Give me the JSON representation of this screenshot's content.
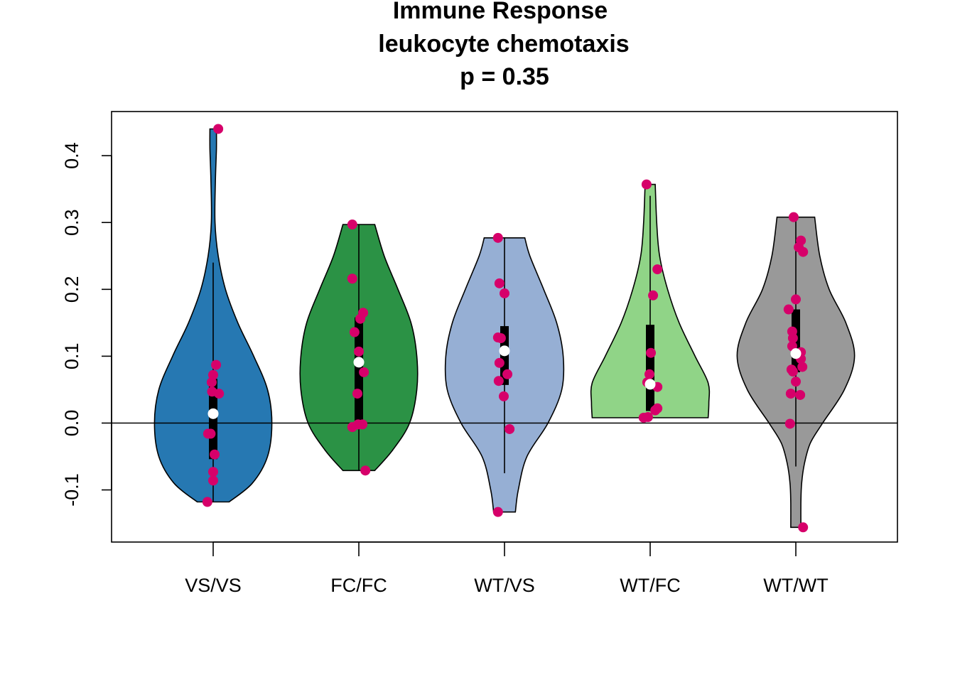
{
  "chart_data": {
    "type": "violin",
    "title": [
      "Immune Response",
      "leukocyte chemotaxis",
      "p = 0.35"
    ],
    "xlabel": "",
    "ylabel": "",
    "categories": [
      "VS/VS",
      "FC/FC",
      "WT/VS",
      "WT/FC",
      "WT/WT"
    ],
    "ylim": [
      -0.178,
      0.466
    ],
    "yticks": [
      -0.1,
      0.0,
      0.1,
      0.2,
      0.3,
      0.4
    ],
    "ytick_labels": [
      "-0.1",
      "0.0",
      "0.1",
      "0.2",
      "0.3",
      "0.4"
    ],
    "reference_line_y": 0.0,
    "grid": false,
    "point_color": "#d6006a",
    "median_color": "#ffffff",
    "groups": [
      {
        "name": "VS/VS",
        "fill": "#2678b2",
        "min": -0.118,
        "max": 0.44,
        "whisker_low": -0.118,
        "whisker_high": 0.24,
        "q1": -0.054,
        "median": 0.014,
        "q3": 0.066,
        "violin": [
          {
            "y": -0.118,
            "w": 0.22
          },
          {
            "y": -0.09,
            "w": 0.54
          },
          {
            "y": -0.05,
            "w": 0.75
          },
          {
            "y": 0.0,
            "w": 0.81
          },
          {
            "y": 0.05,
            "w": 0.75
          },
          {
            "y": 0.1,
            "w": 0.56
          },
          {
            "y": 0.15,
            "w": 0.34
          },
          {
            "y": 0.2,
            "w": 0.17
          },
          {
            "y": 0.25,
            "w": 0.07
          },
          {
            "y": 0.3,
            "w": 0.025
          },
          {
            "y": 0.36,
            "w": 0.03
          },
          {
            "y": 0.41,
            "w": 0.045
          },
          {
            "y": 0.44,
            "w": 0.045
          }
        ],
        "points": [
          {
            "y": 0.44,
            "dx": 0.07
          },
          {
            "y": 0.087,
            "dx": 0.04
          },
          {
            "y": 0.072,
            "dx": 0.0
          },
          {
            "y": 0.061,
            "dx": -0.02
          },
          {
            "y": 0.047,
            "dx": -0.015
          },
          {
            "y": 0.044,
            "dx": 0.08
          },
          {
            "y": -0.016,
            "dx": -0.07
          },
          {
            "y": -0.016,
            "dx": -0.035
          },
          {
            "y": -0.047,
            "dx": 0.02
          },
          {
            "y": -0.073,
            "dx": 0.0
          },
          {
            "y": -0.086,
            "dx": 0.0
          },
          {
            "y": -0.118,
            "dx": -0.08
          }
        ]
      },
      {
        "name": "FC/FC",
        "fill": "#2b9245",
        "min": -0.071,
        "max": 0.297,
        "whisker_low": -0.071,
        "whisker_high": 0.297,
        "q1": 0.002,
        "median": 0.091,
        "q3": 0.158,
        "violin": [
          {
            "y": -0.071,
            "w": 0.22
          },
          {
            "y": -0.04,
            "w": 0.47
          },
          {
            "y": 0.0,
            "w": 0.7
          },
          {
            "y": 0.05,
            "w": 0.8
          },
          {
            "y": 0.1,
            "w": 0.8
          },
          {
            "y": 0.15,
            "w": 0.72
          },
          {
            "y": 0.2,
            "w": 0.54
          },
          {
            "y": 0.25,
            "w": 0.35
          },
          {
            "y": 0.297,
            "w": 0.22
          }
        ],
        "points": [
          {
            "y": 0.297,
            "dx": -0.09
          },
          {
            "y": 0.216,
            "dx": -0.09
          },
          {
            "y": 0.165,
            "dx": 0.06
          },
          {
            "y": 0.156,
            "dx": 0.02
          },
          {
            "y": 0.136,
            "dx": -0.06
          },
          {
            "y": 0.107,
            "dx": 0.0
          },
          {
            "y": 0.076,
            "dx": 0.07
          },
          {
            "y": 0.044,
            "dx": -0.02
          },
          {
            "y": -0.002,
            "dx": 0.05
          },
          {
            "y": -0.002,
            "dx": -0.01
          },
          {
            "y": -0.006,
            "dx": -0.09
          },
          {
            "y": -0.071,
            "dx": 0.09
          }
        ]
      },
      {
        "name": "WT/VS",
        "fill": "#96afd4",
        "min": -0.133,
        "max": 0.277,
        "whisker_low": -0.075,
        "whisker_high": 0.277,
        "q1": 0.057,
        "median": 0.108,
        "q3": 0.145,
        "violin": [
          {
            "y": -0.133,
            "w": 0.15
          },
          {
            "y": -0.1,
            "w": 0.19
          },
          {
            "y": -0.05,
            "w": 0.31
          },
          {
            "y": 0.0,
            "w": 0.6
          },
          {
            "y": 0.05,
            "w": 0.79
          },
          {
            "y": 0.1,
            "w": 0.81
          },
          {
            "y": 0.15,
            "w": 0.72
          },
          {
            "y": 0.2,
            "w": 0.54
          },
          {
            "y": 0.25,
            "w": 0.35
          },
          {
            "y": 0.277,
            "w": 0.28
          }
        ],
        "points": [
          {
            "y": 0.277,
            "dx": -0.09
          },
          {
            "y": 0.209,
            "dx": -0.07
          },
          {
            "y": 0.194,
            "dx": 0.0
          },
          {
            "y": 0.128,
            "dx": -0.09
          },
          {
            "y": 0.127,
            "dx": -0.05
          },
          {
            "y": 0.09,
            "dx": -0.07
          },
          {
            "y": 0.073,
            "dx": 0.04
          },
          {
            "y": 0.063,
            "dx": -0.08
          },
          {
            "y": 0.04,
            "dx": -0.01
          },
          {
            "y": -0.009,
            "dx": 0.07
          },
          {
            "y": -0.133,
            "dx": -0.09
          }
        ]
      },
      {
        "name": "WT/FC",
        "fill": "#90d487",
        "min": 0.008,
        "max": 0.357,
        "whisker_low": 0.018,
        "whisker_high": 0.34,
        "q1": 0.018,
        "median": 0.058,
        "q3": 0.147,
        "violin": [
          {
            "y": 0.008,
            "w": 0.8
          },
          {
            "y": 0.03,
            "w": 0.81
          },
          {
            "y": 0.06,
            "w": 0.8
          },
          {
            "y": 0.1,
            "w": 0.62
          },
          {
            "y": 0.15,
            "w": 0.4
          },
          {
            "y": 0.2,
            "w": 0.24
          },
          {
            "y": 0.25,
            "w": 0.13
          },
          {
            "y": 0.3,
            "w": 0.09
          },
          {
            "y": 0.357,
            "w": 0.07
          }
        ],
        "points": [
          {
            "y": 0.357,
            "dx": -0.05
          },
          {
            "y": 0.23,
            "dx": 0.1
          },
          {
            "y": 0.191,
            "dx": 0.04
          },
          {
            "y": 0.105,
            "dx": 0.01
          },
          {
            "y": 0.073,
            "dx": -0.01
          },
          {
            "y": 0.061,
            "dx": -0.04
          },
          {
            "y": 0.054,
            "dx": 0.1
          },
          {
            "y": 0.022,
            "dx": 0.1
          },
          {
            "y": 0.019,
            "dx": 0.07
          },
          {
            "y": 0.009,
            "dx": -0.03
          },
          {
            "y": 0.008,
            "dx": -0.09
          }
        ]
      },
      {
        "name": "WT/WT",
        "fill": "#999999",
        "min": -0.156,
        "max": 0.308,
        "whisker_low": -0.065,
        "whisker_high": 0.308,
        "q1": 0.076,
        "median": 0.104,
        "q3": 0.17,
        "violin": [
          {
            "y": -0.156,
            "w": 0.07
          },
          {
            "y": -0.12,
            "w": 0.07
          },
          {
            "y": -0.09,
            "w": 0.08
          },
          {
            "y": -0.06,
            "w": 0.12
          },
          {
            "y": -0.03,
            "w": 0.2
          },
          {
            "y": 0.0,
            "w": 0.37
          },
          {
            "y": 0.05,
            "w": 0.67
          },
          {
            "y": 0.1,
            "w": 0.81
          },
          {
            "y": 0.15,
            "w": 0.69
          },
          {
            "y": 0.2,
            "w": 0.46
          },
          {
            "y": 0.25,
            "w": 0.33
          },
          {
            "y": 0.308,
            "w": 0.26
          }
        ],
        "points": [
          {
            "y": 0.308,
            "dx": -0.03
          },
          {
            "y": 0.273,
            "dx": 0.07
          },
          {
            "y": 0.263,
            "dx": 0.04
          },
          {
            "y": 0.256,
            "dx": 0.1
          },
          {
            "y": 0.185,
            "dx": 0.0
          },
          {
            "y": 0.17,
            "dx": -0.1
          },
          {
            "y": 0.137,
            "dx": -0.05
          },
          {
            "y": 0.127,
            "dx": -0.04
          },
          {
            "y": 0.115,
            "dx": -0.05
          },
          {
            "y": 0.106,
            "dx": 0.07
          },
          {
            "y": 0.103,
            "dx": 0.02
          },
          {
            "y": 0.1,
            "dx": 0.05
          },
          {
            "y": 0.096,
            "dx": 0.07
          },
          {
            "y": 0.084,
            "dx": 0.09
          },
          {
            "y": 0.08,
            "dx": -0.06
          },
          {
            "y": 0.077,
            "dx": -0.04
          },
          {
            "y": 0.062,
            "dx": 0.0
          },
          {
            "y": 0.044,
            "dx": -0.07
          },
          {
            "y": 0.042,
            "dx": 0.06
          },
          {
            "y": -0.001,
            "dx": -0.08
          },
          {
            "y": -0.156,
            "dx": 0.1
          }
        ]
      }
    ]
  }
}
